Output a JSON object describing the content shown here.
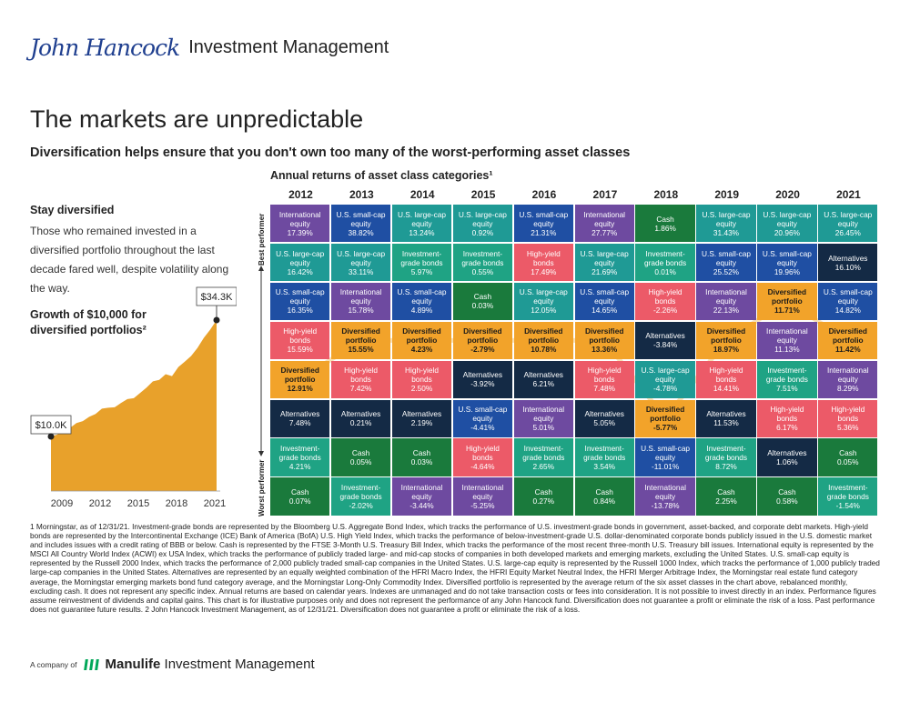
{
  "header": {
    "logo_signature": "John Hancock",
    "logo_text": "Investment Management",
    "title": "The markets are unpredictable",
    "subtitle": "Diversification helps ensure that you don't own too many of the worst-performing asset classes"
  },
  "sidebar": {
    "stay_title": "Stay diversified",
    "stay_text": "Those who remained invested in a diversified portfolio throughout the last decade fared well, despite volatility along the way.",
    "growth_title": "Growth of $10,000 for diversified portfolios²",
    "growth_chart": {
      "start_label": "$10.0K",
      "end_label": "$34.3K",
      "x_ticks": [
        "2009",
        "2012",
        "2015",
        "2018",
        "2021"
      ],
      "values": [
        10.0,
        10.4,
        11.6,
        11.8,
        12.8,
        13.2,
        14.1,
        14.7,
        15.8,
        16.0,
        16.1,
        17.0,
        17.8,
        18.0,
        19.1,
        20.2,
        21.5,
        21.8,
        23.0,
        22.6,
        24.5,
        25.6,
        26.8,
        28.5,
        30.6,
        32.3,
        34.3
      ],
      "color": "#e8a12b"
    }
  },
  "grid": {
    "title": "Annual returns of asset class categories¹",
    "best_label": "Best performer",
    "worst_label": "Worst performer"
  },
  "chart_data": {
    "type": "table",
    "title": "Annual returns of asset class categories¹",
    "years": [
      "2012",
      "2013",
      "2014",
      "2015",
      "2016",
      "2017",
      "2018",
      "2019",
      "2020",
      "2021"
    ],
    "classes": {
      "intl": {
        "color": "#6e4aa0",
        "label": "International equity"
      },
      "usl": {
        "color": "#1f9a95",
        "label": "U.S. large-cap equity"
      },
      "uss": {
        "color": "#1f4fa3",
        "label": "U.S. small-cap equity"
      },
      "hy": {
        "color": "#ec5a68",
        "label": "High-yield bonds"
      },
      "ig": {
        "color": "#1fa384",
        "label": "Investment-grade bonds"
      },
      "cash": {
        "color": "#1a7a3c",
        "label": "Cash"
      },
      "alt": {
        "color": "#142a45",
        "label": "Alternatives"
      },
      "div": {
        "color": "#f2a32a",
        "label": "Diversified portfolio"
      }
    },
    "columns": [
      [
        [
          "intl",
          "17.39%"
        ],
        [
          "usl",
          "16.42%"
        ],
        [
          "uss",
          "16.35%"
        ],
        [
          "hy",
          "15.59%"
        ],
        [
          "div",
          "12.91%"
        ],
        [
          "alt",
          "7.48%"
        ],
        [
          "ig",
          "4.21%"
        ],
        [
          "cash",
          "0.07%"
        ]
      ],
      [
        [
          "uss",
          "38.82%"
        ],
        [
          "usl",
          "33.11%"
        ],
        [
          "intl",
          "15.78%"
        ],
        [
          "div",
          "15.55%"
        ],
        [
          "hy",
          "7.42%"
        ],
        [
          "alt",
          "0.21%"
        ],
        [
          "cash",
          "0.05%"
        ],
        [
          "ig",
          "-2.02%"
        ]
      ],
      [
        [
          "usl",
          "13.24%"
        ],
        [
          "ig",
          "5.97%"
        ],
        [
          "uss",
          "4.89%"
        ],
        [
          "div",
          "4.23%"
        ],
        [
          "hy",
          "2.50%"
        ],
        [
          "alt",
          "2.19%"
        ],
        [
          "cash",
          "0.03%"
        ],
        [
          "intl",
          "-3.44%"
        ]
      ],
      [
        [
          "usl",
          "0.92%"
        ],
        [
          "ig",
          "0.55%"
        ],
        [
          "cash",
          "0.03%"
        ],
        [
          "div",
          "-2.79%"
        ],
        [
          "alt",
          "-3.92%"
        ],
        [
          "uss",
          "-4.41%"
        ],
        [
          "hy",
          "-4.64%"
        ],
        [
          "intl",
          "-5.25%"
        ]
      ],
      [
        [
          "uss",
          "21.31%"
        ],
        [
          "hy",
          "17.49%"
        ],
        [
          "usl",
          "12.05%"
        ],
        [
          "div",
          "10.78%"
        ],
        [
          "alt",
          "6.21%"
        ],
        [
          "intl",
          "5.01%"
        ],
        [
          "ig",
          "2.65%"
        ],
        [
          "cash",
          "0.27%"
        ]
      ],
      [
        [
          "intl",
          "27.77%"
        ],
        [
          "usl",
          "21.69%"
        ],
        [
          "uss",
          "14.65%"
        ],
        [
          "div",
          "13.36%"
        ],
        [
          "hy",
          "7.48%"
        ],
        [
          "alt",
          "5.05%"
        ],
        [
          "ig",
          "3.54%"
        ],
        [
          "cash",
          "0.84%"
        ]
      ],
      [
        [
          "cash",
          "1.86%"
        ],
        [
          "ig",
          "0.01%"
        ],
        [
          "hy",
          "-2.26%"
        ],
        [
          "alt",
          "-3.84%"
        ],
        [
          "usl",
          "-4.78%"
        ],
        [
          "div",
          "-5.77%"
        ],
        [
          "uss",
          "-11.01%"
        ],
        [
          "intl",
          "-13.78%"
        ]
      ],
      [
        [
          "usl",
          "31.43%"
        ],
        [
          "uss",
          "25.52%"
        ],
        [
          "intl",
          "22.13%"
        ],
        [
          "div",
          "18.97%"
        ],
        [
          "hy",
          "14.41%"
        ],
        [
          "alt",
          "11.53%"
        ],
        [
          "ig",
          "8.72%"
        ],
        [
          "cash",
          "2.25%"
        ]
      ],
      [
        [
          "usl",
          "20.96%"
        ],
        [
          "uss",
          "19.96%"
        ],
        [
          "div",
          "11.71%"
        ],
        [
          "intl",
          "11.13%"
        ],
        [
          "ig",
          "7.51%"
        ],
        [
          "hy",
          "6.17%"
        ],
        [
          "alt",
          "1.06%"
        ],
        [
          "cash",
          "0.58%"
        ]
      ],
      [
        [
          "usl",
          "26.45%"
        ],
        [
          "alt",
          "16.10%"
        ],
        [
          "uss",
          "14.82%"
        ],
        [
          "div",
          "11.42%"
        ],
        [
          "intl",
          "8.29%"
        ],
        [
          "hy",
          "5.36%"
        ],
        [
          "cash",
          "0.05%"
        ],
        [
          "ig",
          "-1.54%"
        ]
      ]
    ]
  },
  "footnote": "1 Morningstar, as of 12/31/21. Investment-grade bonds are represented by the Bloomberg U.S. Aggregate Bond Index, which tracks the performance of U.S. investment-grade bonds in government, asset-backed, and corporate debt markets. High-yield bonds are represented by the Intercontinental Exchange (ICE) Bank of America (BofA) U.S. High Yield Index, which tracks the performance of below-investment-grade U.S. dollar-denominated corporate bonds publicly issued in the U.S. domestic market and includes issues with a credit rating of BBB or below. Cash is represented by the FTSE 3-Month U.S. Treasury Bill Index, which tracks the performance of the most recent three-month U.S. Treasury bill issues. International equity is represented by the MSCI All Country World Index (ACWI) ex USA Index, which tracks the performance of publicly traded large- and mid-cap stocks of companies in both developed markets and emerging markets, excluding the United States. U.S. small-cap equity is represented by the Russell 2000 Index, which tracks the performance of 2,000 publicly traded small-cap companies in the United States. U.S. large-cap equity is represented by the Russell 1000 Index, which tracks the performance of 1,000 publicly traded large-cap companies in the United States. Alternatives are represented by an equally weighted combination of the HFRI Macro Index, the HFRI Equity Market Neutral Index, the HFRI Merger Arbitrage Index, the Morningstar real estate fund category average, the Morningstar emerging markets bond fund category average, and the Morningstar Long-Only Commodity Index. Diversified portfolio is represented by the average return of the six asset classes in the chart above, rebalanced monthly, excluding cash. It does not represent any specific index. Annual returns are based on calendar years. Indexes are unmanaged and do not take transaction costs or fees into consideration. It is not possible to invest directly in an index. Performance figures assume reinvestment of dividends and capital gains. This chart is for illustrative purposes only and does not represent the performance of any John Hancock fund. Diversification does not guarantee a profit or eliminate the risk of a loss. Past performance does not guarantee future results. 2 John Hancock Investment Management, as of 12/31/21. Diversification does not guarantee a profit or eliminate the risk of a loss.",
  "company": {
    "prefix": "A company of",
    "brand": "Manulife",
    "suffix": "Investment Management"
  }
}
